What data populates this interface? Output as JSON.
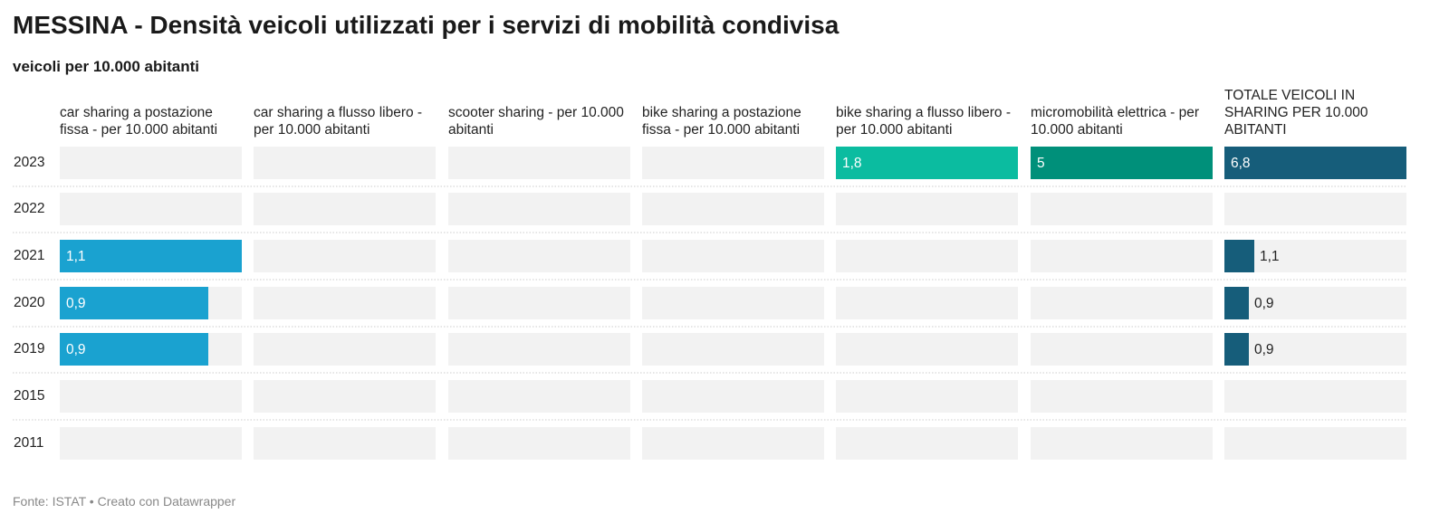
{
  "header": {
    "title": "MESSINA - Densità veicoli utilizzati per i servizi di mobilità condivisa",
    "subtitle": "veicoli per 10.000 abitanti"
  },
  "footer": {
    "source": "Fonte: ISTAT • Creato con Datawrapper"
  },
  "colors": {
    "track": "#f2f2f2",
    "car_sharing_fixed": "#1aa2d0",
    "bike_sharing_free": "#0bbca0",
    "micromobility": "#00907a",
    "total": "#165d7a",
    "separator": "#cccccc"
  },
  "chart_data": {
    "type": "bar",
    "title": "MESSINA - Densità veicoli utilizzati per i servizi di mobilità condivisa",
    "subtitle": "veicoli per 10.000 abitanti",
    "categories": [
      "2023",
      "2022",
      "2021",
      "2020",
      "2019",
      "2015",
      "2011"
    ],
    "series": [
      {
        "name": "car sharing a postazione fissa - per 10.000 abitanti",
        "max": 1.1,
        "color": "#1aa2d0",
        "values": [
          null,
          null,
          1.1,
          0.9,
          0.9,
          null,
          null
        ]
      },
      {
        "name": "car sharing a flusso libero - per 10.000 abitanti",
        "max": 1,
        "color": "#1aa2d0",
        "values": [
          null,
          null,
          null,
          null,
          null,
          null,
          null
        ]
      },
      {
        "name": "scooter sharing - per 10.000 abitanti",
        "max": 1,
        "color": "#1aa2d0",
        "values": [
          null,
          null,
          null,
          null,
          null,
          null,
          null
        ]
      },
      {
        "name": "bike sharing a postazione fissa - per 10.000 abitanti",
        "max": 1,
        "color": "#1aa2d0",
        "values": [
          null,
          null,
          null,
          null,
          null,
          null,
          null
        ]
      },
      {
        "name": "bike sharing a flusso libero - per 10.000 abitanti",
        "max": 1.8,
        "color": "#0bbca0",
        "values": [
          1.8,
          null,
          null,
          null,
          null,
          null,
          null
        ]
      },
      {
        "name": "micromobilità elettrica - per 10.000 abitanti",
        "max": 5,
        "color": "#00907a",
        "values": [
          5,
          null,
          null,
          null,
          null,
          null,
          null
        ]
      },
      {
        "name": "TOTALE VEICOLI IN SHARING PER 10.000 ABITANTI",
        "max": 6.8,
        "color": "#165d7a",
        "values": [
          6.8,
          null,
          1.1,
          0.9,
          0.9,
          null,
          null
        ]
      }
    ],
    "value_labels": [
      [
        "",
        "",
        "1,1",
        "0,9",
        "0,9",
        "",
        ""
      ],
      [
        "",
        "",
        "",
        "",
        "",
        "",
        ""
      ],
      [
        "",
        "",
        "",
        "",
        "",
        "",
        ""
      ],
      [
        "",
        "",
        "",
        "",
        "",
        "",
        ""
      ],
      [
        "1,8",
        "",
        "",
        "",
        "",
        "",
        ""
      ],
      [
        "5",
        "",
        "",
        "",
        "",
        "",
        ""
      ],
      [
        "6,8",
        "",
        "1,1",
        "0,9",
        "0,9",
        "",
        ""
      ]
    ],
    "grid": false,
    "legend": "none"
  }
}
